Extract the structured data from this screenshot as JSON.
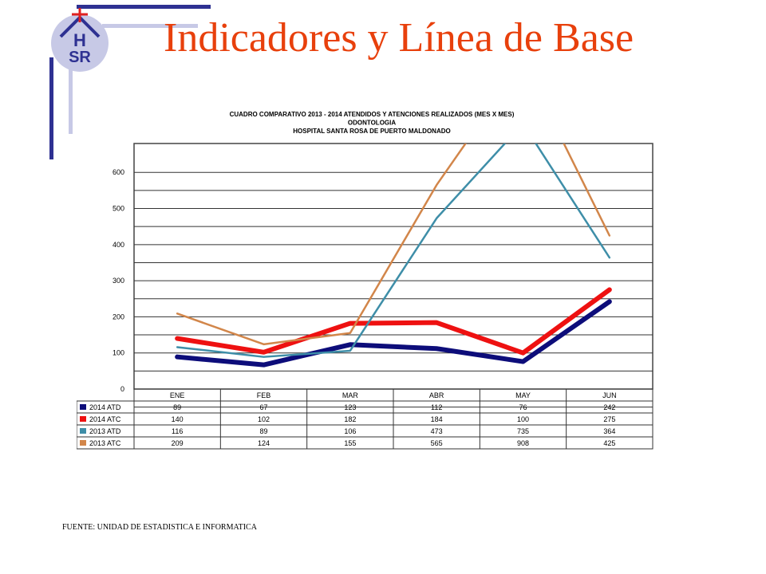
{
  "slide": {
    "title": "Indicadores y Línea de Base",
    "source": "FUENTE: UNIDAD DE ESTADISTICA E INFORMATICA",
    "logo_text": "HSR"
  },
  "colors": {
    "title": "#e8400c",
    "accent_bar": "#2e3192",
    "accent_bar_light": "#c7c9e6",
    "cross": "#e02020"
  },
  "chart_data": {
    "type": "line",
    "title_lines": [
      "CUADRO COMPARATIVO  2013  - 2014   ATENDIDOS Y ATENCIONES   REALIZADOS  (MES X MES)",
      "ODONTOLOGIA",
      "HOSPITAL  SANTA  ROSA DE PUERTO  MALDONADO"
    ],
    "categories": [
      "ENE",
      "FEB",
      "MAR",
      "ABR",
      "MAY",
      "JUN"
    ],
    "ylim": [
      0,
      680
    ],
    "yticks": [
      0,
      100,
      200,
      300,
      400,
      500,
      600
    ],
    "grid": true,
    "legend": "table-below",
    "series": [
      {
        "name": "2014 ATD",
        "color": "#0d0d7a",
        "width": 6,
        "values": [
          89,
          67,
          123,
          112,
          76,
          242
        ]
      },
      {
        "name": "2014 ATC",
        "color": "#ee1111",
        "width": 6,
        "values": [
          140,
          102,
          182,
          184,
          100,
          275
        ]
      },
      {
        "name": "2013 ATD",
        "color": "#3e8ea8",
        "width": 2.5,
        "values": [
          116,
          89,
          106,
          473,
          735,
          364
        ]
      },
      {
        "name": "2013 ATC",
        "color": "#d2864a",
        "width": 2.5,
        "values": [
          209,
          124,
          155,
          565,
          908,
          425
        ]
      }
    ]
  }
}
